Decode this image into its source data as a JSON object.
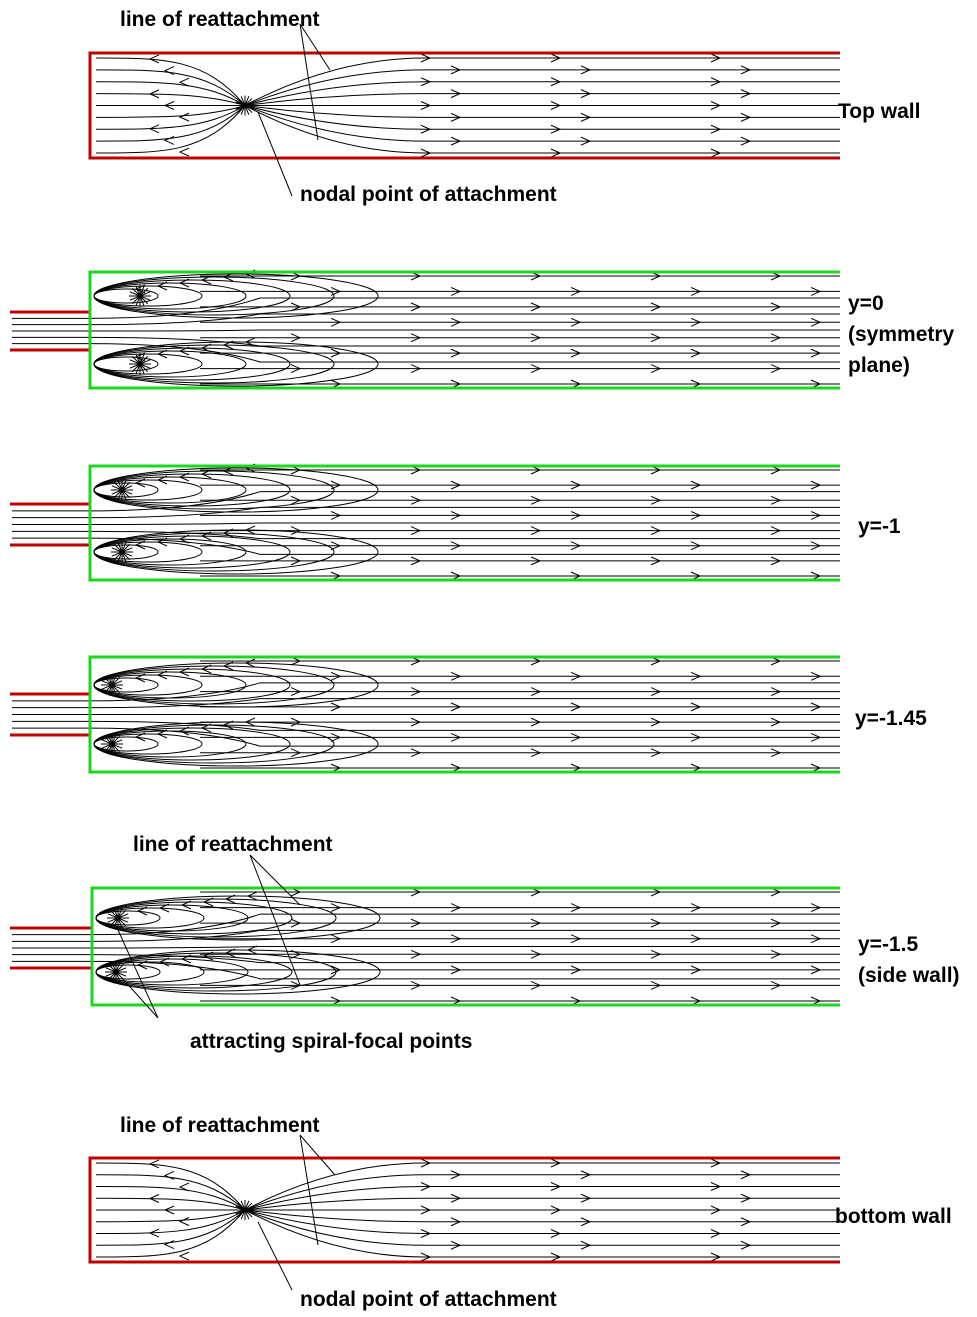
{
  "panels": [
    {
      "label_lines": [
        "Top wall"
      ],
      "annotations": [
        "line of reattachment",
        "nodal point of attachment"
      ]
    },
    {
      "label_lines": [
        "y=0",
        "(symmetry",
        "plane)"
      ]
    },
    {
      "label_lines": [
        "y=-1"
      ]
    },
    {
      "label_lines": [
        "y=-1.45"
      ]
    },
    {
      "label_lines": [
        "y=-1.5",
        "(side wall)"
      ],
      "annotations": [
        "line of reattachment",
        "attracting spiral-focal points"
      ]
    },
    {
      "label_lines": [
        "bottom wall"
      ],
      "annotations": [
        "line of reattachment",
        "nodal point of attachment"
      ]
    }
  ]
}
